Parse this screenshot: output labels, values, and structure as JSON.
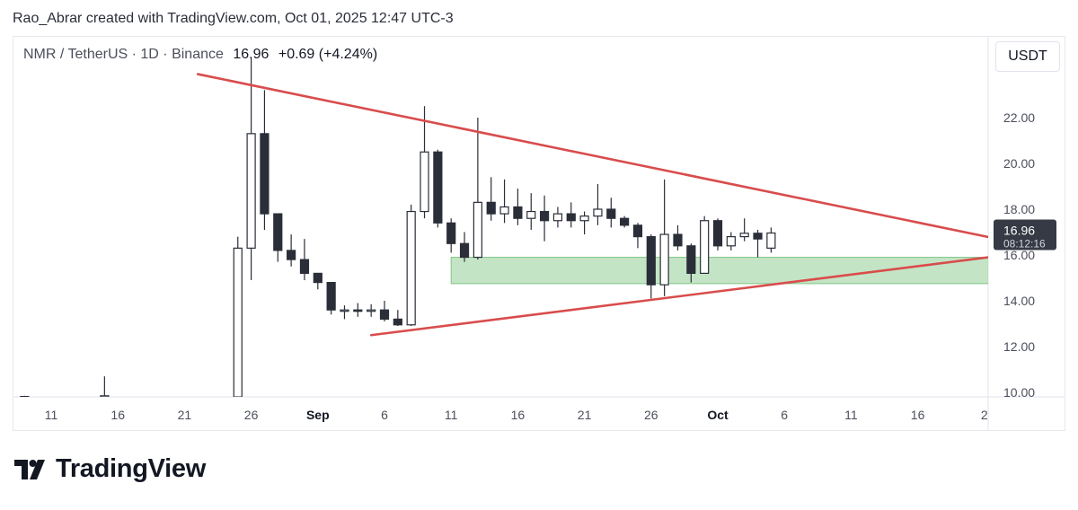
{
  "attribution": "Rao_Abrar created with TradingView.com, Oct 01, 2025 12:47 UTC-3",
  "header": {
    "symbol": "NMR / TetherUS · 1D · Binance",
    "price": "16.96",
    "change": "+0.69 (+4.24%)"
  },
  "unit_label": "USDT",
  "price_label": {
    "price": "16.96",
    "countdown": "08:12:16"
  },
  "brand": {
    "name": "TradingView"
  },
  "colors": {
    "bull_fill": "#ffffff",
    "bear_fill": "#2a2e39",
    "candle_outline": "#2a2e39",
    "trendline": "#d94c4c",
    "zone_fill": "#a5d6a7",
    "price_label_bg": "#363a45"
  },
  "chart_data": {
    "type": "candlestick",
    "y_axis": {
      "ticks": [
        "22.00",
        "20.00",
        "18.00",
        "16.00",
        "14.00",
        "12.00",
        "10.00"
      ],
      "ylim": [
        9.85,
        24.6
      ],
      "side": "right"
    },
    "x_axis": {
      "ticks": [
        "11",
        "16",
        "21",
        "26",
        "Sep",
        "6",
        "11",
        "16",
        "21",
        "26",
        "Oct",
        "6",
        "11",
        "16",
        "2"
      ]
    },
    "candles": [
      {
        "date": "Aug 09",
        "o": 9.8,
        "h": 9.85,
        "l": 9.75,
        "c": 9.82
      },
      {
        "date": "Aug 15",
        "o": 9.8,
        "h": 10.7,
        "l": 9.75,
        "c": 9.85
      },
      {
        "date": "Aug 25",
        "o": 9.8,
        "h": 16.8,
        "l": 9.75,
        "c": 16.3
      },
      {
        "date": "Aug 26",
        "o": 16.3,
        "h": 24.6,
        "l": 14.9,
        "c": 21.3
      },
      {
        "date": "Aug 27",
        "o": 21.3,
        "h": 23.2,
        "l": 17.1,
        "c": 17.8
      },
      {
        "date": "Aug 28",
        "o": 17.8,
        "h": 17.8,
        "l": 15.7,
        "c": 16.2
      },
      {
        "date": "Aug 29",
        "o": 16.2,
        "h": 16.9,
        "l": 15.5,
        "c": 15.8
      },
      {
        "date": "Aug 30",
        "o": 15.8,
        "h": 16.7,
        "l": 14.9,
        "c": 15.2
      },
      {
        "date": "Aug 31",
        "o": 15.2,
        "h": 15.2,
        "l": 14.5,
        "c": 14.8
      },
      {
        "date": "Sep 01",
        "o": 14.8,
        "h": 14.8,
        "l": 13.4,
        "c": 13.6
      },
      {
        "date": "Sep 02",
        "o": 13.6,
        "h": 13.8,
        "l": 13.2,
        "c": 13.6
      },
      {
        "date": "Sep 03",
        "o": 13.6,
        "h": 13.9,
        "l": 13.3,
        "c": 13.55
      },
      {
        "date": "Sep 04",
        "o": 13.55,
        "h": 13.85,
        "l": 13.3,
        "c": 13.6
      },
      {
        "date": "Sep 05",
        "o": 13.6,
        "h": 14.0,
        "l": 13.1,
        "c": 13.2
      },
      {
        "date": "Sep 06",
        "o": 13.2,
        "h": 13.6,
        "l": 12.9,
        "c": 12.95
      },
      {
        "date": "Sep 07",
        "o": 12.95,
        "h": 18.2,
        "l": 12.9,
        "c": 17.9
      },
      {
        "date": "Sep 08",
        "o": 17.9,
        "h": 22.5,
        "l": 17.6,
        "c": 20.5
      },
      {
        "date": "Sep 09",
        "o": 20.5,
        "h": 20.6,
        "l": 17.2,
        "c": 17.4
      },
      {
        "date": "Sep 10",
        "o": 17.4,
        "h": 17.6,
        "l": 16.1,
        "c": 16.5
      },
      {
        "date": "Sep 11",
        "o": 16.5,
        "h": 17.0,
        "l": 15.7,
        "c": 15.9
      },
      {
        "date": "Sep 12",
        "o": 15.9,
        "h": 22.0,
        "l": 15.8,
        "c": 18.3
      },
      {
        "date": "Sep 13",
        "o": 18.3,
        "h": 19.4,
        "l": 17.5,
        "c": 17.8
      },
      {
        "date": "Sep 14",
        "o": 17.8,
        "h": 19.3,
        "l": 17.4,
        "c": 18.1
      },
      {
        "date": "Sep 15",
        "o": 18.1,
        "h": 18.9,
        "l": 17.3,
        "c": 17.6
      },
      {
        "date": "Sep 16",
        "o": 17.6,
        "h": 18.7,
        "l": 17.1,
        "c": 17.9
      },
      {
        "date": "Sep 17",
        "o": 17.9,
        "h": 18.6,
        "l": 16.6,
        "c": 17.5
      },
      {
        "date": "Sep 18",
        "o": 17.5,
        "h": 18.1,
        "l": 17.2,
        "c": 17.8
      },
      {
        "date": "Sep 19",
        "o": 17.8,
        "h": 18.3,
        "l": 17.2,
        "c": 17.5
      },
      {
        "date": "Sep 20",
        "o": 17.5,
        "h": 17.9,
        "l": 16.9,
        "c": 17.7
      },
      {
        "date": "Sep 21",
        "o": 17.7,
        "h": 19.1,
        "l": 17.3,
        "c": 18.0
      },
      {
        "date": "Sep 22",
        "o": 18.0,
        "h": 18.5,
        "l": 17.2,
        "c": 17.6
      },
      {
        "date": "Sep 23",
        "o": 17.6,
        "h": 17.7,
        "l": 17.2,
        "c": 17.3
      },
      {
        "date": "Sep 24",
        "o": 17.3,
        "h": 17.4,
        "l": 16.3,
        "c": 16.8
      },
      {
        "date": "Sep 25",
        "o": 16.8,
        "h": 16.9,
        "l": 14.1,
        "c": 14.7
      },
      {
        "date": "Sep 26",
        "o": 14.7,
        "h": 19.3,
        "l": 14.2,
        "c": 16.9
      },
      {
        "date": "Sep 27",
        "o": 16.9,
        "h": 17.3,
        "l": 16.2,
        "c": 16.4
      },
      {
        "date": "Sep 28",
        "o": 16.4,
        "h": 16.5,
        "l": 14.8,
        "c": 15.2
      },
      {
        "date": "Sep 29",
        "o": 15.2,
        "h": 17.7,
        "l": 15.2,
        "c": 17.5
      },
      {
        "date": "Sep 30",
        "o": 17.5,
        "h": 17.6,
        "l": 16.2,
        "c": 16.4
      },
      {
        "date": "Oct 01",
        "o": 16.4,
        "h": 17.0,
        "l": 16.2,
        "c": 16.8
      },
      {
        "date": "Oct 02",
        "o": 16.8,
        "h": 17.6,
        "l": 16.6,
        "c": 16.95
      },
      {
        "date": "Oct 03",
        "o": 16.95,
        "h": 17.1,
        "l": 15.9,
        "c": 16.7
      },
      {
        "date": "Oct 04",
        "o": 16.3,
        "h": 17.2,
        "l": 16.1,
        "c": 16.96
      }
    ],
    "annotations": {
      "upper_trendline": [
        {
          "date": "Aug 22",
          "y": 23.9
        },
        {
          "date": "Oct 21",
          "y": 16.7
        }
      ],
      "lower_trendline": [
        {
          "date": "Sep 04",
          "y": 12.5
        },
        {
          "date": "Oct 21",
          "y": 15.95
        }
      ],
      "support_zone": {
        "from": "Sep 10",
        "to": "Oct 21",
        "low": 14.75,
        "high": 15.9
      }
    }
  }
}
